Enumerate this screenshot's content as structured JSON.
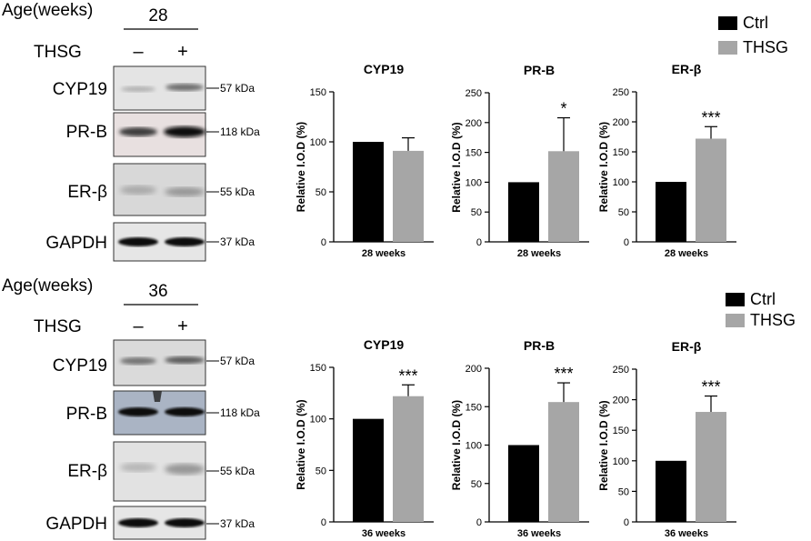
{
  "panels": [
    {
      "age_label": "Age(weeks)",
      "age_value": "28",
      "treatment_label": "THSG",
      "minus": "–",
      "plus": "+",
      "blots": [
        {
          "protein": "CYP19",
          "kda": "57 kDa"
        },
        {
          "protein": "PR-B",
          "kda": "118 kDa"
        },
        {
          "protein": "ER-β",
          "kda": "55 kDa"
        },
        {
          "protein": "GAPDH",
          "kda": "37 kDa"
        }
      ],
      "legend": [
        {
          "name": "Ctrl",
          "color": "#000000"
        },
        {
          "name": "THSG",
          "color": "#a6a6a6"
        }
      ]
    },
    {
      "age_label": "Age(weeks)",
      "age_value": "36",
      "treatment_label": "THSG",
      "minus": "–",
      "plus": "+",
      "blots": [
        {
          "protein": "CYP19",
          "kda": "57 kDa"
        },
        {
          "protein": "PR-B",
          "kda": "118 kDa"
        },
        {
          "protein": "ER-β",
          "kda": "55 kDa"
        },
        {
          "protein": "GAPDH",
          "kda": "37 kDa"
        }
      ],
      "legend": [
        {
          "name": "Ctrl",
          "color": "#000000"
        },
        {
          "name": "THSG",
          "color": "#a6a6a6"
        }
      ]
    }
  ],
  "chart_data": [
    {
      "type": "bar",
      "title": "CYP19",
      "ylabel": "Relative I.O.D (%)",
      "xlabel": "28 weeks",
      "categories": [
        "Ctrl",
        "THSG"
      ],
      "values": [
        100,
        91
      ],
      "errors": [
        0,
        13
      ],
      "significance": [
        "",
        ""
      ],
      "ylim": [
        0,
        150
      ],
      "yticks": [
        "0",
        "50",
        "100",
        "150"
      ],
      "colors": [
        "#000000",
        "#a6a6a6"
      ]
    },
    {
      "type": "bar",
      "title": "PR-B",
      "ylabel": "Relative I.O.D (%)",
      "xlabel": "28 weeks",
      "categories": [
        "Ctrl",
        "THSG"
      ],
      "values": [
        100,
        152
      ],
      "errors": [
        0,
        56
      ],
      "significance": [
        "",
        "*"
      ],
      "ylim": [
        0,
        250
      ],
      "yticks": [
        "0",
        "50",
        "100",
        "150",
        "200",
        "250"
      ],
      "colors": [
        "#000000",
        "#a6a6a6"
      ]
    },
    {
      "type": "bar",
      "title": "ER-β",
      "ylabel": "Relative I.O.D (%)",
      "xlabel": "28 weeks",
      "categories": [
        "Ctrl",
        "THSG"
      ],
      "values": [
        100,
        172
      ],
      "errors": [
        0,
        20
      ],
      "significance": [
        "",
        "***"
      ],
      "ylim": [
        0,
        250
      ],
      "yticks": [
        "0",
        "50",
        "100",
        "150",
        "200",
        "250"
      ],
      "colors": [
        "#000000",
        "#a6a6a6"
      ]
    },
    {
      "type": "bar",
      "title": "CYP19",
      "ylabel": "Relative I.O.D (%)",
      "xlabel": "36 weeks",
      "categories": [
        "Ctrl",
        "THSG"
      ],
      "values": [
        100,
        122
      ],
      "errors": [
        0,
        11
      ],
      "significance": [
        "",
        "***"
      ],
      "ylim": [
        0,
        150
      ],
      "yticks": [
        "0",
        "50",
        "100",
        "150"
      ],
      "colors": [
        "#000000",
        "#a6a6a6"
      ]
    },
    {
      "type": "bar",
      "title": "PR-B",
      "ylabel": "Relative I.O.D (%)",
      "xlabel": "36 weeks",
      "categories": [
        "Ctrl",
        "THSG"
      ],
      "values": [
        100,
        156
      ],
      "errors": [
        0,
        25
      ],
      "significance": [
        "",
        "***"
      ],
      "ylim": [
        0,
        200
      ],
      "yticks": [
        "0",
        "50",
        "100",
        "150",
        "200"
      ],
      "colors": [
        "#000000",
        "#a6a6a6"
      ]
    },
    {
      "type": "bar",
      "title": "ER-β",
      "ylabel": "Relative I.O.D (%)",
      "xlabel": "36 weeks",
      "categories": [
        "Ctrl",
        "THSG"
      ],
      "values": [
        100,
        180
      ],
      "errors": [
        0,
        26
      ],
      "significance": [
        "",
        "***"
      ],
      "ylim": [
        0,
        250
      ],
      "yticks": [
        "0",
        "50",
        "100",
        "150",
        "200",
        "250"
      ],
      "colors": [
        "#000000",
        "#a6a6a6"
      ]
    }
  ]
}
